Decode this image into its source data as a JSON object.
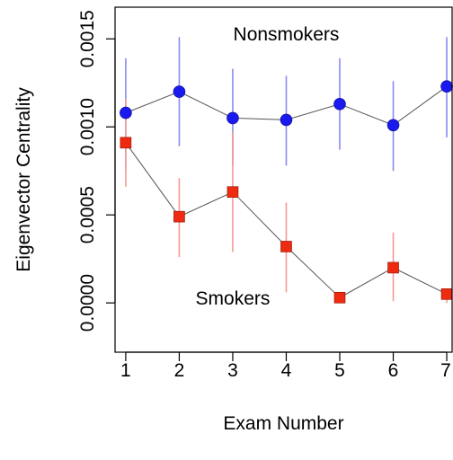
{
  "chart_data": {
    "type": "scatter",
    "title": "",
    "xlabel": "Exam Number",
    "ylabel": "Eigenvector Centrality",
    "x": [
      1,
      2,
      3,
      4,
      5,
      6,
      7
    ],
    "xlim": [
      0.8,
      7.1
    ],
    "ylim": [
      -0.00028,
      0.00168
    ],
    "xticks": [
      "1",
      "2",
      "3",
      "4",
      "5",
      "6",
      "7"
    ],
    "yticks": [
      {
        "value": 0.0,
        "label": "0.0000"
      },
      {
        "value": 0.0005,
        "label": "0.0005"
      },
      {
        "value": 0.001,
        "label": "0.0010"
      },
      {
        "value": 0.0015,
        "label": "0.0015"
      }
    ],
    "grid": false,
    "series": [
      {
        "name": "Nonsmokers",
        "marker": "circle",
        "color": "#1a1aee",
        "error_color": "#8a8af2",
        "values": [
          0.00108,
          0.0012,
          0.00105,
          0.00104,
          0.00113,
          0.00101,
          0.00123
        ],
        "lower": [
          0.00076,
          0.00089,
          0.00078,
          0.00078,
          0.00087,
          0.00075,
          0.00094
        ],
        "upper": [
          0.00139,
          0.00151,
          0.00133,
          0.00129,
          0.00139,
          0.00126,
          0.00151
        ]
      },
      {
        "name": "Smokers",
        "marker": "square",
        "color": "#ee2a10",
        "error_color": "#f59a92",
        "values": [
          0.00091,
          0.00049,
          0.00063,
          0.00032,
          3e-05,
          0.0002,
          5e-05
        ],
        "lower": [
          0.00066,
          0.00026,
          0.00029,
          6e-05,
          0.0,
          1e-05,
          0.0
        ],
        "upper": [
          0.00116,
          0.00071,
          0.00097,
          0.00057,
          3e-05,
          0.0004,
          5e-05
        ]
      }
    ],
    "annotations": [
      {
        "text": "Nonsmokers",
        "x": 4.0,
        "y": 0.00149
      },
      {
        "text": "Smokers",
        "x": 3.0,
        "y": -1e-05
      }
    ]
  }
}
